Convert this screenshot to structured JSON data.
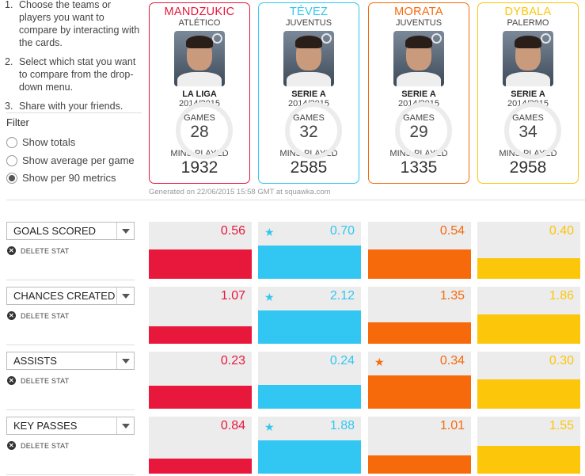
{
  "instructions": [
    {
      "num": "1.",
      "text": "Choose the teams or players you want to compare by interacting with the cards."
    },
    {
      "num": "2.",
      "text": "Select which stat you want to compare from the drop-down menu."
    },
    {
      "num": "3.",
      "text": "Share with your friends."
    }
  ],
  "filter": {
    "title": "Filter",
    "options": [
      {
        "label": "Show totals",
        "selected": false
      },
      {
        "label": "Show average per game",
        "selected": false
      },
      {
        "label": "Show per 90 metrics",
        "selected": true
      }
    ]
  },
  "players": [
    {
      "name": "MANDZUKIC",
      "club": "ATLÉTICO",
      "league": "LA LIGA",
      "season": "2014/2015",
      "games_label": "GAMES",
      "games": "28",
      "mins_label": "MINS PLAYED",
      "mins": "1932",
      "color": "#e8173c"
    },
    {
      "name": "TÉVEZ",
      "club": "JUVENTUS",
      "league": "SERIE A",
      "season": "2014/2015",
      "games_label": "GAMES",
      "games": "32",
      "mins_label": "MINS PLAYED",
      "mins": "2585",
      "color": "#31c7f2"
    },
    {
      "name": "MORATA",
      "club": "JUVENTUS",
      "league": "SERIE A",
      "season": "2014/2015",
      "games_label": "GAMES",
      "games": "29",
      "mins_label": "MINS PLAYED",
      "mins": "1335",
      "color": "#f66a0c"
    },
    {
      "name": "DYBALA",
      "club": "PALERMO",
      "league": "SERIE A",
      "season": "2014/2015",
      "games_label": "GAMES",
      "games": "34",
      "mins_label": "MINS PLAYED",
      "mins": "2958",
      "color": "#fcc60a"
    }
  ],
  "generated": "Generated on 22/06/2015 15:58 GMT at squawka.com",
  "delete_label": "DELETE STAT",
  "stats": [
    {
      "name": "GOALS SCORED",
      "values": [
        "0.56",
        "0.70",
        "0.54",
        "0.40"
      ],
      "fill": [
        0.52,
        0.58,
        0.52,
        0.36
      ],
      "best": 1
    },
    {
      "name": "CHANCES CREATED",
      "values": [
        "1.07",
        "2.12",
        "1.35",
        "1.86"
      ],
      "fill": [
        0.3,
        0.58,
        0.38,
        0.52
      ],
      "best": 1
    },
    {
      "name": "ASSISTS",
      "values": [
        "0.23",
        "0.24",
        "0.34",
        "0.30"
      ],
      "fill": [
        0.4,
        0.42,
        0.58,
        0.52
      ],
      "best": 2
    },
    {
      "name": "KEY PASSES",
      "values": [
        "0.84",
        "1.88",
        "1.01",
        "1.55"
      ],
      "fill": [
        0.26,
        0.58,
        0.32,
        0.48
      ],
      "best": 1
    }
  ]
}
